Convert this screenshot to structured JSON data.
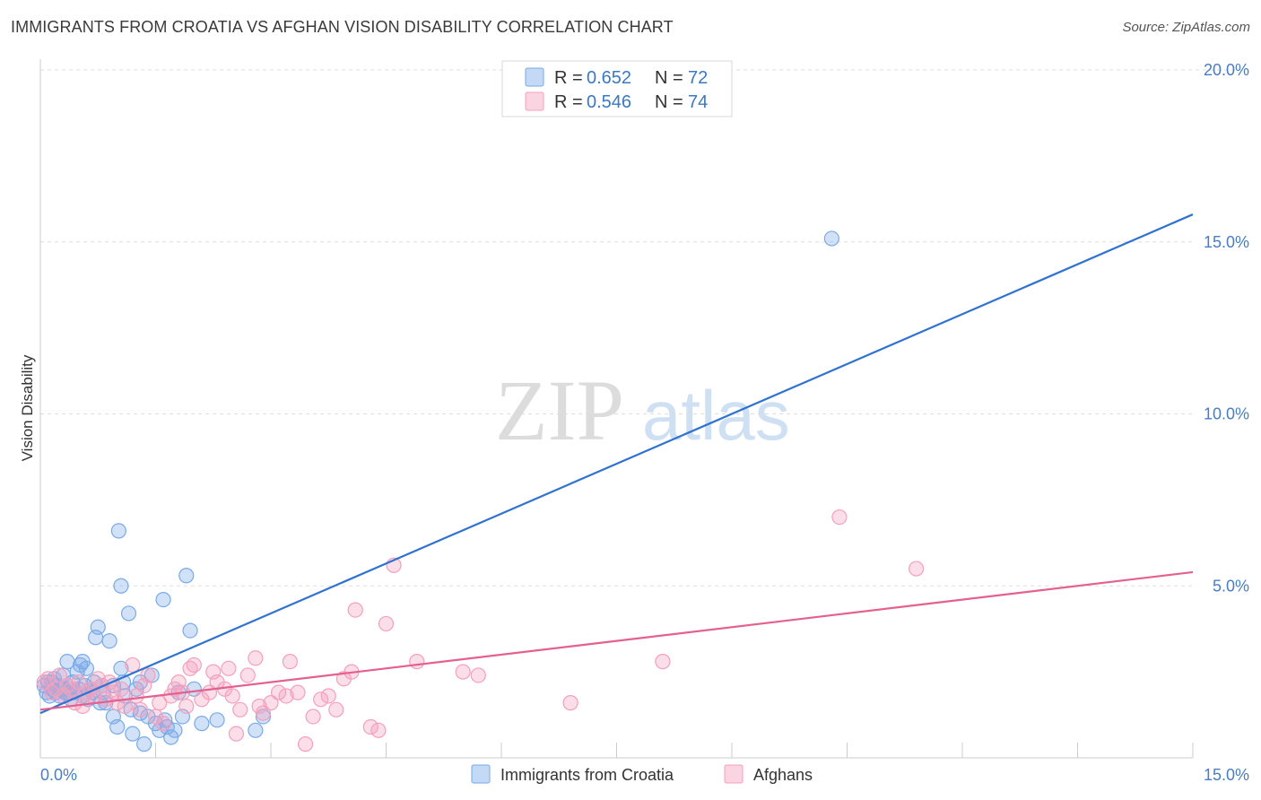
{
  "chart_data": {
    "type": "scatter",
    "title": "IMMIGRANTS FROM CROATIA VS AFGHAN VISION DISABILITY CORRELATION CHART",
    "source": "Source: ZipAtlas.com",
    "ylabel": "Vision Disability",
    "xlabel": "",
    "xlim": [
      0,
      15
    ],
    "ylim": [
      0,
      20
    ],
    "x_tick_labels": [
      "0.0%",
      "15.0%"
    ],
    "y_ticks": [
      5,
      10,
      15,
      20
    ],
    "y_tick_labels": [
      "5.0%",
      "10.0%",
      "15.0%",
      "20.0%"
    ],
    "watermark": {
      "zip": "ZIP",
      "atlas": "atlas"
    },
    "legend": {
      "r_label": "R =",
      "n_label": "N =",
      "entries": [
        {
          "r": "0.652",
          "n": "72"
        },
        {
          "r": "0.546",
          "n": "74"
        }
      ]
    },
    "series": [
      {
        "name": "Immigrants from Croatia",
        "color": "#7aaae8",
        "line_color": "#2f72cf",
        "trend": {
          "x0": 0,
          "y0": 1.3,
          "x1": 15,
          "y1": 15.8
        },
        "points": [
          [
            0.05,
            2.1
          ],
          [
            0.08,
            1.9
          ],
          [
            0.1,
            2.2
          ],
          [
            0.12,
            1.8
          ],
          [
            0.15,
            2.0
          ],
          [
            0.18,
            2.3
          ],
          [
            0.2,
            1.9
          ],
          [
            0.22,
            2.1
          ],
          [
            0.25,
            1.8
          ],
          [
            0.28,
            2.0
          ],
          [
            0.3,
            2.4
          ],
          [
            0.32,
            1.9
          ],
          [
            0.35,
            2.8
          ],
          [
            0.38,
            2.0
          ],
          [
            0.4,
            1.7
          ],
          [
            0.42,
            2.2
          ],
          [
            0.45,
            1.9
          ],
          [
            0.48,
            2.5
          ],
          [
            0.5,
            2.0
          ],
          [
            0.52,
            2.7
          ],
          [
            0.55,
            1.8
          ],
          [
            0.58,
            2.1
          ],
          [
            0.6,
            2.6
          ],
          [
            0.62,
            1.7
          ],
          [
            0.65,
            2.0
          ],
          [
            0.68,
            1.9
          ],
          [
            0.7,
            2.2
          ],
          [
            0.72,
            3.5
          ],
          [
            0.75,
            3.8
          ],
          [
            0.78,
            1.6
          ],
          [
            0.8,
            2.1
          ],
          [
            0.82,
            1.9
          ],
          [
            0.85,
            1.6
          ],
          [
            0.9,
            3.4
          ],
          [
            0.95,
            1.2
          ],
          [
            1.0,
            0.9
          ],
          [
            1.02,
            6.6
          ],
          [
            1.05,
            2.6
          ],
          [
            1.08,
            2.2
          ],
          [
            1.1,
            1.8
          ],
          [
            1.15,
            4.2
          ],
          [
            1.18,
            1.4
          ],
          [
            1.2,
            0.7
          ],
          [
            1.25,
            2.0
          ],
          [
            1.3,
            2.2
          ],
          [
            1.35,
            0.4
          ],
          [
            1.4,
            1.2
          ],
          [
            1.45,
            2.4
          ],
          [
            1.5,
            1.0
          ],
          [
            1.55,
            0.8
          ],
          [
            1.6,
            4.6
          ],
          [
            1.62,
            1.1
          ],
          [
            1.65,
            0.9
          ],
          [
            1.7,
            0.6
          ],
          [
            1.75,
            0.8
          ],
          [
            1.8,
            1.9
          ],
          [
            1.85,
            1.2
          ],
          [
            1.9,
            5.3
          ],
          [
            1.95,
            3.7
          ],
          [
            2.0,
            2.0
          ],
          [
            2.1,
            1.0
          ],
          [
            2.3,
            1.1
          ],
          [
            2.8,
            0.8
          ],
          [
            2.9,
            1.2
          ],
          [
            1.05,
            5.0
          ],
          [
            0.55,
            2.8
          ],
          [
            0.3,
            2.0
          ],
          [
            0.15,
            2.2
          ],
          [
            0.35,
            1.9
          ],
          [
            0.95,
            2.1
          ],
          [
            1.3,
            1.3
          ],
          [
            10.3,
            15.1
          ]
        ]
      },
      {
        "name": "Afghans",
        "color": "#f4a0bd",
        "line_color": "#e3608f",
        "trend": {
          "x0": 0,
          "y0": 1.4,
          "x1": 15,
          "y1": 5.4
        },
        "points": [
          [
            0.05,
            2.2
          ],
          [
            0.1,
            2.3
          ],
          [
            0.15,
            1.9
          ],
          [
            0.2,
            2.0
          ],
          [
            0.25,
            2.4
          ],
          [
            0.3,
            1.8
          ],
          [
            0.35,
            2.1
          ],
          [
            0.4,
            2.0
          ],
          [
            0.45,
            1.6
          ],
          [
            0.5,
            2.2
          ],
          [
            0.55,
            1.5
          ],
          [
            0.6,
            1.9
          ],
          [
            0.65,
            2.0
          ],
          [
            0.7,
            1.8
          ],
          [
            0.75,
            2.3
          ],
          [
            0.8,
            2.1
          ],
          [
            0.85,
            1.7
          ],
          [
            0.9,
            2.2
          ],
          [
            0.95,
            1.9
          ],
          [
            1.0,
            1.6
          ],
          [
            1.05,
            2.0
          ],
          [
            1.1,
            1.5
          ],
          [
            1.2,
            2.7
          ],
          [
            1.25,
            1.8
          ],
          [
            1.3,
            1.4
          ],
          [
            1.35,
            2.1
          ],
          [
            1.4,
            2.4
          ],
          [
            1.5,
            1.2
          ],
          [
            1.55,
            1.6
          ],
          [
            1.6,
            1.0
          ],
          [
            1.7,
            1.8
          ],
          [
            1.75,
            2.0
          ],
          [
            1.8,
            2.2
          ],
          [
            1.85,
            1.9
          ],
          [
            1.9,
            1.5
          ],
          [
            1.95,
            2.6
          ],
          [
            2.0,
            2.7
          ],
          [
            2.1,
            1.7
          ],
          [
            2.2,
            1.9
          ],
          [
            2.25,
            2.5
          ],
          [
            2.3,
            2.2
          ],
          [
            2.4,
            2.0
          ],
          [
            2.45,
            2.6
          ],
          [
            2.5,
            1.8
          ],
          [
            2.55,
            0.7
          ],
          [
            2.6,
            1.4
          ],
          [
            2.7,
            2.4
          ],
          [
            2.8,
            2.9
          ],
          [
            2.85,
            1.5
          ],
          [
            2.9,
            1.3
          ],
          [
            3.0,
            1.6
          ],
          [
            3.1,
            1.9
          ],
          [
            3.2,
            1.8
          ],
          [
            3.25,
            2.8
          ],
          [
            3.35,
            1.9
          ],
          [
            3.45,
            0.4
          ],
          [
            3.55,
            1.2
          ],
          [
            3.65,
            1.7
          ],
          [
            3.75,
            1.8
          ],
          [
            3.85,
            1.4
          ],
          [
            3.95,
            2.3
          ],
          [
            4.05,
            2.5
          ],
          [
            4.1,
            4.3
          ],
          [
            4.3,
            0.9
          ],
          [
            4.4,
            0.8
          ],
          [
            4.5,
            3.9
          ],
          [
            4.6,
            5.6
          ],
          [
            4.9,
            2.8
          ],
          [
            5.5,
            2.5
          ],
          [
            5.7,
            2.4
          ],
          [
            6.9,
            1.6
          ],
          [
            8.1,
            2.8
          ],
          [
            10.4,
            7.0
          ],
          [
            11.4,
            5.5
          ]
        ]
      }
    ]
  }
}
